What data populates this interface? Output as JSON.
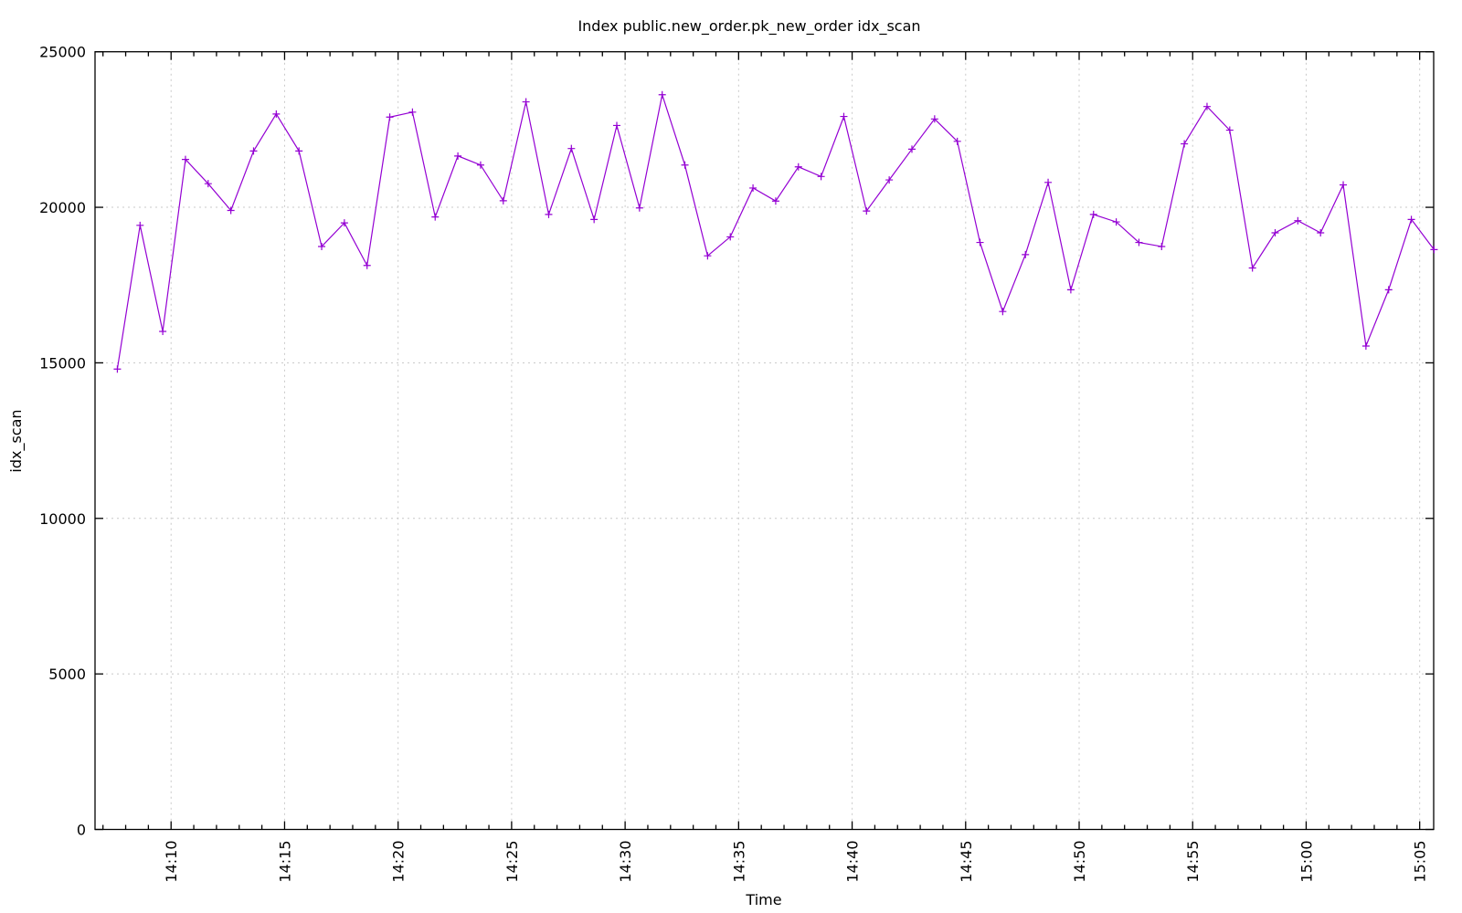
{
  "chart_data": {
    "type": "line",
    "title": "Index public.new_order.pk_new_order idx_scan",
    "xlabel": "Time",
    "ylabel": "idx_scan",
    "ylim": [
      0,
      25000
    ],
    "yticks": [
      0,
      5000,
      10000,
      15000,
      20000,
      25000
    ],
    "xlim": [
      "14:06:39",
      "15:05:37"
    ],
    "xticks": [
      "14:10",
      "14:15",
      "14:20",
      "14:25",
      "14:30",
      "14:35",
      "14:40",
      "14:45",
      "14:50",
      "14:55",
      "15:00",
      "15:05"
    ],
    "grid": true,
    "legend": "none",
    "series": [
      {
        "name": "idx_scan",
        "color": "#9400d3",
        "marker": "+",
        "start_time": "14:07:38",
        "interval_seconds": 60,
        "values": [
          14800,
          19420,
          16010,
          21540,
          20760,
          19900,
          21810,
          23000,
          21810,
          18740,
          19500,
          18130,
          22900,
          23060,
          19690,
          21650,
          21360,
          20210,
          23390,
          19770,
          21890,
          19610,
          22630,
          19980,
          23620,
          21360,
          18440,
          19050,
          20620,
          20200,
          21300,
          20990,
          22920,
          19880,
          20880,
          21870,
          22840,
          22120,
          18870,
          16650,
          18480,
          20800,
          17350,
          19770,
          19530,
          18870,
          18740,
          22040,
          23240,
          22480,
          18050,
          19180,
          19570,
          19180,
          20720,
          15540,
          17350,
          19610,
          18640
        ]
      }
    ]
  },
  "colors": {
    "line": "#9400d3",
    "axis": "#000000",
    "grid": "#c8c8c8"
  }
}
